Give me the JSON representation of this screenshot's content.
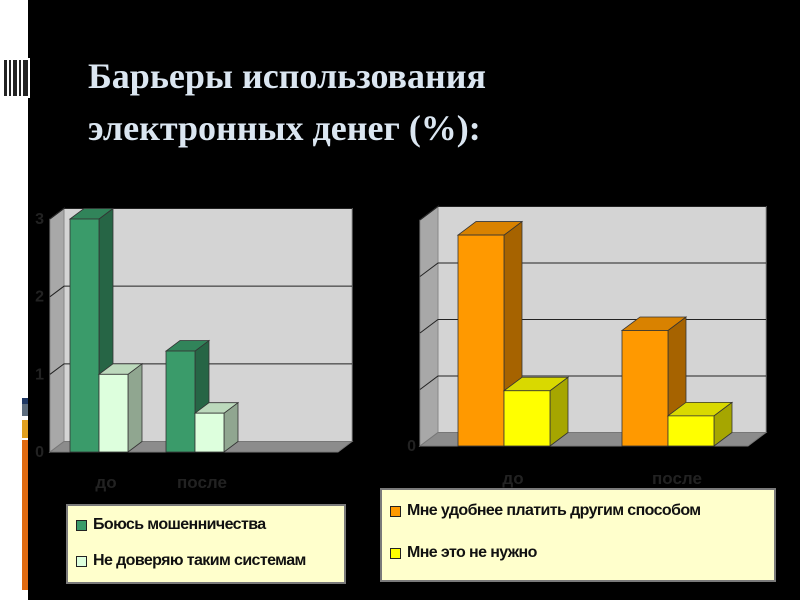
{
  "title": {
    "line1": "Барьеры использования",
    "line2": "электронных денег (%):"
  },
  "colors": {
    "slide_background": "#000000",
    "title_text": "#dbe6f1",
    "plot_wall": "#d4d4d4",
    "legend_background": "#ffffcc"
  },
  "chart_data": [
    {
      "type": "bar",
      "categories": [
        "до",
        "после"
      ],
      "series": [
        {
          "name": "Боюсь мошенничества",
          "values": [
            30,
            13
          ],
          "color": "#3a9b6a"
        },
        {
          "name": "Не доверяю таким системам",
          "values": [
            10,
            5
          ],
          "color": "#ddffdd"
        }
      ],
      "y_ticks": [
        "0",
        "1",
        "2",
        "3"
      ],
      "ylim": [
        0,
        30
      ],
      "grid": true,
      "legend_position": "bottom",
      "title": "",
      "xlabel": "",
      "ylabel": ""
    },
    {
      "type": "bar",
      "categories": [
        "до",
        "после"
      ],
      "series": [
        {
          "name": "Мне удобнее платить другим способом",
          "values": [
            42,
            23
          ],
          "color": "#ff9900"
        },
        {
          "name": "Мне это не нужно",
          "values": [
            11,
            6
          ],
          "color": "#ffff00"
        }
      ],
      "y_ticks": [
        "0"
      ],
      "ylim": [
        0,
        45
      ],
      "grid": true,
      "legend_position": "bottom",
      "title": "",
      "xlabel": "",
      "ylabel": ""
    }
  ]
}
